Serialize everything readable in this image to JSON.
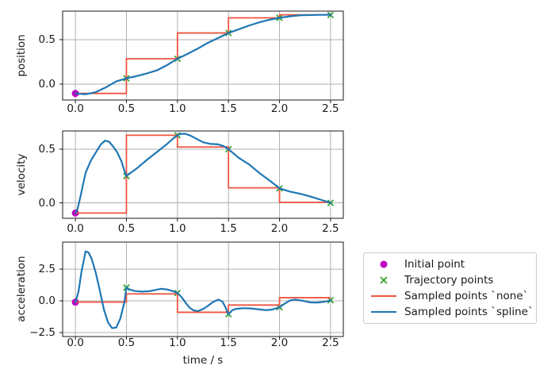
{
  "figure": {
    "background": "#ffffff",
    "colors": {
      "initial_point": "#bf00bf",
      "trajectory_points": "#2ca02c",
      "sampled_none": "#ee5540",
      "sampled_spline": "#1f77b4",
      "grid": "#b0b0b0",
      "axes": "#1a1a1a",
      "legend_border": "#cccccc"
    },
    "legend": {
      "items": [
        {
          "label": "Initial point",
          "marker": "circle",
          "color": "#bf00bf"
        },
        {
          "label": "Trajectory points",
          "marker": "x",
          "color": "#2ca02c"
        },
        {
          "label": "Sampled points `none`",
          "marker": "line",
          "color": "#ee5540"
        },
        {
          "label": "Sampled points `spline`",
          "marker": "line",
          "color": "#1f77b4"
        }
      ]
    }
  },
  "chart_data": [
    {
      "type": "line",
      "title": "",
      "ylabel": "position",
      "xlabel": "",
      "xlim": [
        -0.125,
        2.625
      ],
      "ylim": [
        -0.179,
        0.821
      ],
      "grid": true,
      "xticks": {
        "values": [
          0.0,
          0.5,
          1.0,
          1.5,
          2.0,
          2.5
        ],
        "labels": [
          "0.0",
          "0.5",
          "1.0",
          "1.5",
          "2.0",
          "2.5"
        ]
      },
      "yticks": {
        "values": [
          0.0,
          0.5
        ],
        "labels": [
          "0.0",
          "0.5"
        ]
      },
      "series": [
        {
          "name": "Initial point",
          "kind": "scatter-circle",
          "color": "#bf00bf",
          "x": [
            0.0
          ],
          "y": [
            -0.105
          ]
        },
        {
          "name": "Trajectory points",
          "kind": "scatter-x",
          "color": "#2ca02c",
          "x": [
            0.5,
            1.0,
            1.5,
            2.0,
            2.5
          ],
          "y": [
            0.065,
            0.285,
            0.575,
            0.745,
            0.777
          ]
        },
        {
          "name": "Sampled points `none`",
          "kind": "step",
          "color": "#ee5540",
          "edges": [
            0.0,
            0.5,
            1.0,
            1.5,
            2.0,
            2.5
          ],
          "levels": [
            -0.105,
            0.285,
            0.575,
            0.745,
            0.78
          ]
        },
        {
          "name": "Sampled points `spline`",
          "kind": "line",
          "color": "#1f77b4",
          "x": [
            0,
            0.1,
            0.2,
            0.3,
            0.4,
            0.5,
            0.6,
            0.7,
            0.8,
            0.9,
            1.0,
            1.1,
            1.2,
            1.3,
            1.4,
            1.5,
            1.6,
            1.7,
            1.8,
            1.9,
            2.0,
            2.1,
            2.2,
            2.3,
            2.4,
            2.5
          ],
          "y": [
            -0.105,
            -0.115,
            -0.09,
            -0.036,
            0.03,
            0.065,
            0.09,
            0.12,
            0.155,
            0.215,
            0.285,
            0.34,
            0.4,
            0.465,
            0.52,
            0.575,
            0.616,
            0.658,
            0.694,
            0.723,
            0.745,
            0.762,
            0.774,
            0.777,
            0.779,
            0.78
          ]
        }
      ]
    },
    {
      "type": "line",
      "title": "",
      "ylabel": "velocity",
      "xlabel": "",
      "xlim": [
        -0.125,
        2.625
      ],
      "ylim": [
        -0.144,
        0.67
      ],
      "grid": true,
      "xticks": {
        "values": [
          0.0,
          0.5,
          1.0,
          1.5,
          2.0,
          2.5
        ],
        "labels": [
          "0.0",
          "0.5",
          "1.0",
          "1.5",
          "2.0",
          "2.5"
        ]
      },
      "yticks": {
        "values": [
          0.0,
          0.5
        ],
        "labels": [
          "0.0",
          "0.5"
        ]
      },
      "series": [
        {
          "name": "Initial point",
          "kind": "scatter-circle",
          "color": "#bf00bf",
          "x": [
            0.0
          ],
          "y": [
            -0.095
          ]
        },
        {
          "name": "Trajectory points",
          "kind": "scatter-x",
          "color": "#2ca02c",
          "x": [
            0.5,
            1.0,
            1.5,
            2.0,
            2.5
          ],
          "y": [
            0.25,
            0.63,
            0.5,
            0.135,
            0.0
          ]
        },
        {
          "name": "Sampled points `none`",
          "kind": "step",
          "color": "#ee5540",
          "edges": [
            0.0,
            0.5,
            1.0,
            1.5,
            2.0,
            2.5
          ],
          "levels": [
            -0.095,
            0.63,
            0.52,
            0.14,
            0.005
          ]
        },
        {
          "name": "Sampled points `spline`",
          "kind": "line",
          "color": "#1f77b4",
          "x": [
            0,
            0.02,
            0.05,
            0.1,
            0.15,
            0.2,
            0.25,
            0.29,
            0.33,
            0.37,
            0.41,
            0.45,
            0.48,
            0.5,
            0.55,
            0.6,
            0.7,
            0.8,
            0.9,
            0.97,
            1.02,
            1.07,
            1.12,
            1.18,
            1.25,
            1.32,
            1.4,
            1.45,
            1.5,
            1.6,
            1.7,
            1.8,
            1.9,
            2.0,
            2.1,
            2.2,
            2.3,
            2.4,
            2.5
          ],
          "y": [
            -0.095,
            -0.06,
            0.06,
            0.28,
            0.39,
            0.47,
            0.545,
            0.58,
            0.57,
            0.525,
            0.47,
            0.39,
            0.3,
            0.25,
            0.285,
            0.32,
            0.4,
            0.475,
            0.55,
            0.61,
            0.64,
            0.645,
            0.63,
            0.6,
            0.565,
            0.55,
            0.545,
            0.53,
            0.5,
            0.42,
            0.36,
            0.28,
            0.21,
            0.135,
            0.105,
            0.085,
            0.06,
            0.03,
            0.0
          ]
        }
      ]
    },
    {
      "type": "line",
      "title": "",
      "ylabel": "acceleration",
      "xlabel": "time / s",
      "xlim": [
        -0.125,
        2.625
      ],
      "ylim": [
        -2.81,
        4.63
      ],
      "grid": true,
      "xticks": {
        "values": [
          0.0,
          0.5,
          1.0,
          1.5,
          2.0,
          2.5
        ],
        "labels": [
          "0.0",
          "0.5",
          "1.0",
          "1.5",
          "2.0",
          "2.5"
        ]
      },
      "yticks": {
        "values": [
          -2.5,
          0.0,
          2.5
        ],
        "labels": [
          "−2.5",
          "0.0",
          "2.5"
        ]
      },
      "series": [
        {
          "name": "Initial point",
          "kind": "scatter-circle",
          "color": "#bf00bf",
          "x": [
            0.0
          ],
          "y": [
            -0.1
          ]
        },
        {
          "name": "Trajectory points",
          "kind": "scatter-x",
          "color": "#2ca02c",
          "x": [
            0.5,
            1.0,
            1.5,
            2.0,
            2.5
          ],
          "y": [
            1.05,
            0.62,
            -1.05,
            -0.5,
            0.05
          ]
        },
        {
          "name": "Sampled points `none`",
          "kind": "step",
          "color": "#ee5540",
          "edges": [
            0.0,
            0.5,
            1.0,
            1.5,
            2.0,
            2.5
          ],
          "levels": [
            -0.1,
            0.55,
            -0.9,
            -0.33,
            0.25
          ]
        },
        {
          "name": "Sampled points `spline`",
          "kind": "line",
          "color": "#1f77b4",
          "x": [
            0,
            0.03,
            0.06,
            0.1,
            0.13,
            0.16,
            0.2,
            0.24,
            0.28,
            0.32,
            0.36,
            0.4,
            0.44,
            0.48,
            0.5,
            0.53,
            0.58,
            0.65,
            0.72,
            0.78,
            0.84,
            0.9,
            0.95,
            1.0,
            1.04,
            1.08,
            1.12,
            1.16,
            1.2,
            1.25,
            1.3,
            1.35,
            1.4,
            1.44,
            1.47,
            1.5,
            1.54,
            1.58,
            1.65,
            1.72,
            1.8,
            1.87,
            1.93,
            2.0,
            2.05,
            2.1,
            2.15,
            2.22,
            2.3,
            2.38,
            2.45,
            2.5
          ],
          "y": [
            -0.1,
            0.7,
            2.3,
            3.9,
            3.8,
            3.3,
            2.2,
            0.8,
            -0.7,
            -1.7,
            -2.15,
            -2.1,
            -1.4,
            -0.1,
            1.05,
            0.9,
            0.78,
            0.73,
            0.76,
            0.85,
            0.95,
            0.9,
            0.78,
            0.62,
            0.3,
            -0.15,
            -0.55,
            -0.75,
            -0.8,
            -0.65,
            -0.38,
            -0.08,
            0.1,
            -0.05,
            -0.5,
            -1.05,
            -0.72,
            -0.62,
            -0.58,
            -0.6,
            -0.67,
            -0.73,
            -0.68,
            -0.5,
            -0.22,
            0.02,
            0.1,
            0.02,
            -0.12,
            -0.13,
            -0.05,
            0.03
          ]
        }
      ]
    }
  ]
}
